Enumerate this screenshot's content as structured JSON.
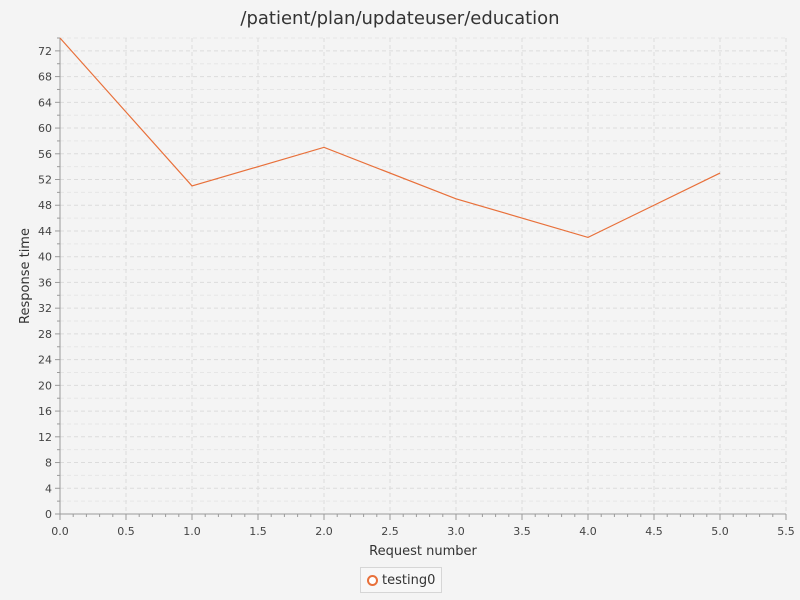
{
  "chart_data": {
    "type": "line",
    "title": "/patient/plan/updateuser/education",
    "xlabel": "Request number",
    "ylabel": "Response time",
    "xlim": [
      0,
      5.5
    ],
    "ylim": [
      0,
      74
    ],
    "x_ticks": [
      0,
      0.5,
      1,
      1.5,
      2,
      2.5,
      3,
      3.5,
      4,
      4.5,
      5,
      5.5
    ],
    "x_tick_labels": [
      "0.0",
      "0.5",
      "1.0",
      "1.5",
      "2.0",
      "2.5",
      "3.0",
      "3.5",
      "4.0",
      "4.5",
      "5.0",
      "5.5"
    ],
    "y_ticks": [
      0,
      4,
      8,
      12,
      16,
      20,
      24,
      28,
      32,
      36,
      40,
      44,
      48,
      52,
      56,
      60,
      64,
      68,
      72
    ],
    "y_tick_labels": [
      "0",
      "4",
      "8",
      "12",
      "16",
      "20",
      "24",
      "28",
      "32",
      "36",
      "40",
      "44",
      "48",
      "52",
      "56",
      "60",
      "64",
      "68",
      "72"
    ],
    "grid": true,
    "legend_position": "bottom-center",
    "series": [
      {
        "name": "testing0",
        "color": "#e8703a",
        "x": [
          0,
          1,
          2,
          3,
          4,
          5
        ],
        "y": [
          74,
          51,
          57,
          49,
          43,
          53
        ]
      }
    ]
  }
}
